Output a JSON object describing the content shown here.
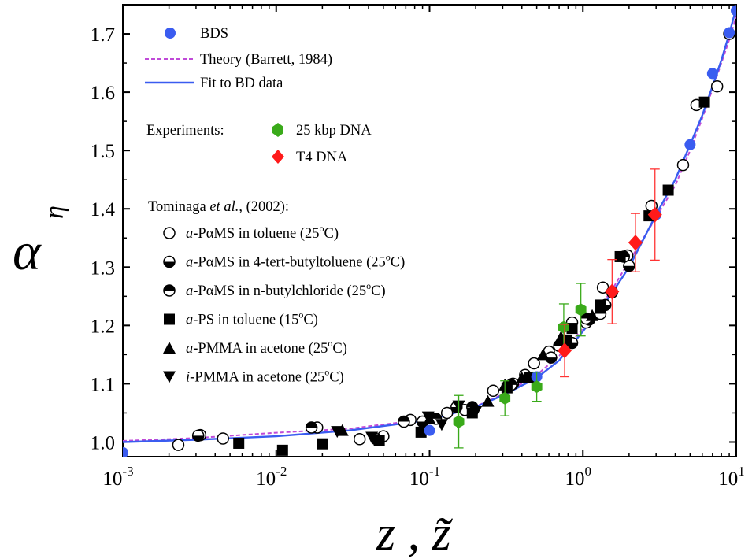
{
  "chart_data": {
    "type": "scatter",
    "xscale": "log",
    "xlabel": "z , z̃",
    "ylabel": "α",
    "ylabel_subscript": "η",
    "xlim": [
      0.001,
      10
    ],
    "ylim": [
      0.975,
      1.75
    ],
    "x_ticks": [
      {
        "base": "10",
        "exp": "-3",
        "v": 0.001
      },
      {
        "base": "10",
        "exp": "-2",
        "v": 0.01
      },
      {
        "base": "10",
        "exp": "-1",
        "v": 0.1
      },
      {
        "base": "10",
        "exp": "0",
        "v": 1
      },
      {
        "base": "10",
        "exp": "1",
        "v": 10
      }
    ],
    "y_ticks": [
      "1.0",
      "1.1",
      "1.2",
      "1.3",
      "1.4",
      "1.5",
      "1.6",
      "1.7"
    ],
    "legend": {
      "bds": "BDS",
      "theory": "Theory (Barrett, 1984)",
      "fit": "Fit to BD data",
      "experiments_label": "Experiments:",
      "dna25": "25 kbp DNA",
      "t4": "T4 DNA",
      "tominaga_prefix": "Tominaga ",
      "tominaga_etal": "et al.",
      "tominaga_suffix": ", (2002):",
      "entries": [
        {
          "marker": "open-circle",
          "prefix": "a",
          "text": "-PαMS in toluene (25",
          "sup": "o",
          "tail": "C)"
        },
        {
          "marker": "half-circle-bottom",
          "prefix": "a",
          "text": "-PαMS in 4-tert-butyltoluene (25",
          "sup": "o",
          "tail": "C)"
        },
        {
          "marker": "half-circle-top",
          "prefix": "a",
          "text": "-PαMS in n-butylchloride (25",
          "sup": "o",
          "tail": "C)"
        },
        {
          "marker": "square",
          "prefix": "a",
          "text": "-PS in toluene (15",
          "sup": "o",
          "tail": "C)"
        },
        {
          "marker": "triangle-up",
          "prefix": "a",
          "text": "-PMMA in acetone (25",
          "sup": "o",
          "tail": "C)"
        },
        {
          "marker": "triangle-down",
          "prefix": "i",
          "text": "-PMMA in acetone (25",
          "sup": "o",
          "tail": "C)"
        }
      ]
    },
    "colors": {
      "bds": "#3a5cf0",
      "theory": "#c04ad8",
      "fit": "#3a5cf0",
      "dna25": "#3aaa1a",
      "t4": "#ff1a1a",
      "errorbar_dna25": "#3aaa1a",
      "errorbar_t4": "#ff3333"
    },
    "fit_curve": [
      [
        0.001,
        1.0
      ],
      [
        0.003,
        1.004
      ],
      [
        0.01,
        1.01
      ],
      [
        0.03,
        1.02
      ],
      [
        0.1,
        1.038
      ],
      [
        0.2,
        1.06
      ],
      [
        0.3,
        1.08
      ],
      [
        0.5,
        1.11
      ],
      [
        0.7,
        1.14
      ],
      [
        1.0,
        1.19
      ],
      [
        1.5,
        1.25
      ],
      [
        2.0,
        1.3
      ],
      [
        3.0,
        1.39
      ],
      [
        4.0,
        1.45
      ],
      [
        5.0,
        1.51
      ],
      [
        6.0,
        1.56
      ],
      [
        7.0,
        1.61
      ],
      [
        8.0,
        1.655
      ],
      [
        9.0,
        1.7
      ],
      [
        10.0,
        1.745
      ]
    ],
    "theory_curve": [
      [
        0.001,
        1.002
      ],
      [
        0.003,
        1.007
      ],
      [
        0.01,
        1.016
      ],
      [
        0.03,
        1.023
      ],
      [
        0.1,
        1.04
      ],
      [
        0.2,
        1.061
      ],
      [
        0.3,
        1.082
      ],
      [
        0.5,
        1.115
      ],
      [
        0.7,
        1.148
      ],
      [
        1.0,
        1.195
      ],
      [
        1.5,
        1.255
      ],
      [
        2.0,
        1.31
      ],
      [
        3.0,
        1.385
      ],
      [
        4.0,
        1.44
      ],
      [
        5.0,
        1.5
      ],
      [
        6.0,
        1.555
      ],
      [
        7.0,
        1.605
      ],
      [
        8.0,
        1.65
      ],
      [
        9.0,
        1.69
      ],
      [
        10.0,
        1.73
      ]
    ],
    "series": [
      {
        "name": "BDS",
        "marker": "filled-circle",
        "points": [
          [
            0.001,
            0.982
          ],
          [
            0.1,
            1.02
          ],
          [
            0.5,
            1.112
          ],
          [
            3.0,
            1.39
          ],
          [
            5.0,
            1.51
          ],
          [
            7.0,
            1.632
          ],
          [
            9.0,
            1.702
          ],
          [
            10.0,
            1.74
          ]
        ]
      },
      {
        "name": "25 kbp DNA",
        "marker": "hexagon",
        "points": [
          [
            0.155,
            1.035,
            0.045
          ],
          [
            0.31,
            1.075,
            0.03
          ],
          [
            0.5,
            1.095,
            0.025
          ],
          [
            0.75,
            1.197,
            0.04
          ],
          [
            0.97,
            1.227,
            0.045
          ]
        ]
      },
      {
        "name": "T4 DNA",
        "marker": "diamond",
        "points": [
          [
            0.76,
            1.157,
            0.045
          ],
          [
            1.55,
            1.258,
            0.055
          ],
          [
            2.2,
            1.342,
            0.05
          ],
          [
            2.95,
            1.39,
            0.078
          ]
        ]
      },
      {
        "name": "a-PαMS in toluene (25oC)",
        "marker": "open-circle",
        "points": [
          [
            0.0023,
            0.995
          ],
          [
            0.0032,
            1.012
          ],
          [
            0.0045,
            1.006
          ],
          [
            0.0185,
            1.025
          ],
          [
            0.035,
            1.005
          ],
          [
            0.05,
            1.01
          ],
          [
            0.075,
            1.038
          ],
          [
            0.13,
            1.05
          ],
          [
            0.17,
            1.055
          ],
          [
            0.26,
            1.088
          ],
          [
            0.42,
            1.115
          ],
          [
            0.48,
            1.135
          ],
          [
            0.6,
            1.155
          ],
          [
            0.85,
            1.205
          ],
          [
            1.05,
            1.205
          ],
          [
            1.35,
            1.265
          ],
          [
            1.95,
            1.32
          ],
          [
            2.8,
            1.405
          ],
          [
            4.5,
            1.475
          ],
          [
            5.5,
            1.578
          ],
          [
            7.5,
            1.61
          ],
          [
            9.0,
            1.7
          ]
        ]
      },
      {
        "name": "a-PαMS in 4-tert-butyltoluene (25oC)",
        "marker": "half-circle-bottom",
        "points": [
          [
            0.0031,
            1.011
          ],
          [
            0.045,
            1.005
          ],
          [
            0.09,
            1.035
          ],
          [
            0.15,
            1.06
          ],
          [
            0.35,
            1.1
          ],
          [
            0.62,
            1.145
          ],
          [
            0.85,
            1.17
          ],
          [
            1.1,
            1.21
          ],
          [
            1.4,
            1.235
          ],
          [
            2.0,
            1.302
          ]
        ]
      },
      {
        "name": "a-PαMS in n-butylchloride (25oC)",
        "marker": "half-circle-top",
        "points": [
          [
            0.017,
            1.025
          ],
          [
            0.068,
            1.035
          ],
          [
            0.11,
            1.04
          ],
          [
            0.19,
            1.06
          ],
          [
            0.34,
            1.098
          ],
          [
            0.7,
            1.165
          ],
          [
            1.05,
            1.212
          ],
          [
            1.3,
            1.22
          ],
          [
            1.55,
            1.257
          ],
          [
            1.85,
            1.318
          ]
        ]
      },
      {
        "name": "a-PS in toluene (15oC)",
        "marker": "square",
        "points": [
          [
            0.0057,
            0.998
          ],
          [
            0.011,
            0.986
          ],
          [
            0.02,
            0.997
          ],
          [
            0.047,
            1.003
          ],
          [
            0.088,
            1.017
          ],
          [
            0.19,
            1.05
          ],
          [
            0.32,
            1.093
          ],
          [
            0.45,
            1.11
          ],
          [
            0.78,
            1.175
          ],
          [
            0.85,
            1.195
          ],
          [
            1.3,
            1.235
          ],
          [
            1.75,
            1.318
          ],
          [
            2.7,
            1.388
          ],
          [
            3.6,
            1.432
          ],
          [
            6.2,
            1.583
          ]
        ]
      },
      {
        "name": "a-PMMA in acetone (25oC)",
        "marker": "triangle-up",
        "points": [
          [
            0.027,
            1.02
          ],
          [
            0.1,
            1.04
          ],
          [
            0.24,
            1.07
          ],
          [
            0.31,
            1.098
          ],
          [
            0.4,
            1.11
          ],
          [
            0.55,
            1.15
          ],
          [
            0.72,
            1.18
          ],
          [
            1.15,
            1.217
          ]
        ]
      },
      {
        "name": "i-PMMA in acetone (25oC)",
        "marker": "triangle-down",
        "points": [
          [
            0.025,
            1.018
          ],
          [
            0.042,
            1.008
          ],
          [
            0.098,
            1.043
          ],
          [
            0.12,
            1.03
          ],
          [
            0.155,
            1.062
          ],
          [
            0.2,
            1.052
          ]
        ]
      }
    ]
  }
}
